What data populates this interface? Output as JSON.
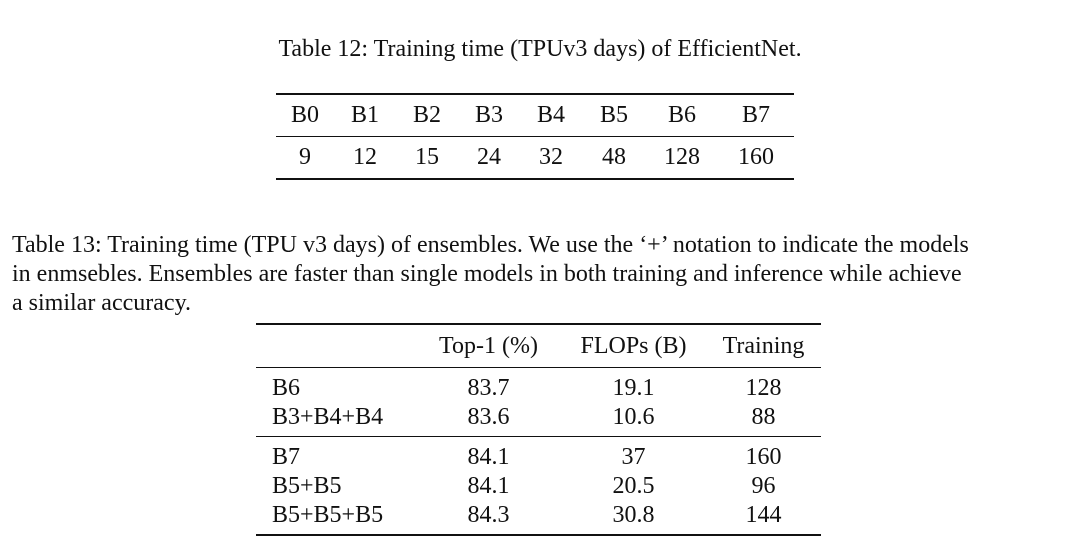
{
  "table12": {
    "caption": "Table 12: Training time (TPUv3 days) of EfficientNet.",
    "headers": [
      "B0",
      "B1",
      "B2",
      "B3",
      "B4",
      "B5",
      "B6",
      "B7"
    ],
    "values": [
      "9",
      "12",
      "15",
      "24",
      "32",
      "48",
      "128",
      "160"
    ]
  },
  "table13": {
    "caption_lines": [
      "Table 13: Training time (TPU v3 days) of ensembles. We use the ‘+’ notation to indicate the models",
      "in enmsebles. Ensembles are faster than single models in both training and inference while achieve",
      "a similar accuracy."
    ],
    "headers": [
      "",
      "Top-1 (%)",
      "FLOPs (B)",
      "Training"
    ],
    "groups": [
      [
        [
          "B6",
          "83.7",
          "19.1",
          "128"
        ],
        [
          "B3+B4+B4",
          "83.6",
          "10.6",
          "88"
        ]
      ],
      [
        [
          "B7",
          "84.1",
          "37",
          "160"
        ],
        [
          "B5+B5",
          "84.1",
          "20.5",
          "96"
        ],
        [
          "B5+B5+B5",
          "84.3",
          "30.8",
          "144"
        ]
      ]
    ]
  }
}
